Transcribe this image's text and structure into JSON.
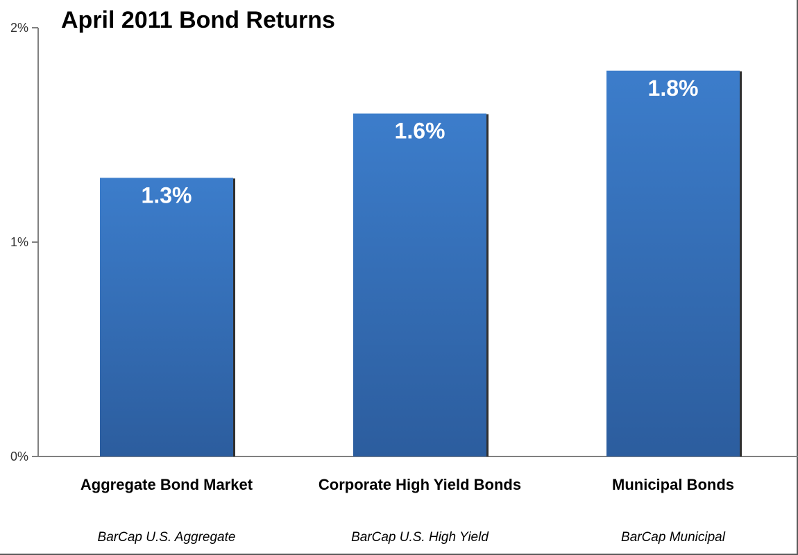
{
  "chart_data": {
    "type": "bar",
    "title": "April 2011 Bond Returns",
    "categories": [
      "Aggregate Bond Market",
      "Corporate High Yield Bonds",
      "Municipal Bonds"
    ],
    "sublabels": [
      "BarCap U.S. Aggregate",
      "BarCap U.S. High Yield",
      "BarCap Municipal"
    ],
    "values": [
      1.3,
      1.6,
      1.8
    ],
    "value_labels": [
      "1.3%",
      "1.6%",
      "1.8%"
    ],
    "ylim": [
      0,
      2
    ],
    "yticks": [
      0,
      1,
      2
    ],
    "ytick_labels": [
      "0%",
      "1%",
      "2%"
    ],
    "xlabel": "",
    "ylabel": "",
    "grid": false,
    "legend": "none",
    "bar_color_top": "#3c7dcb",
    "bar_color_bottom": "#2c5d9e",
    "bar_shadow_color": "#1a1a1a"
  }
}
